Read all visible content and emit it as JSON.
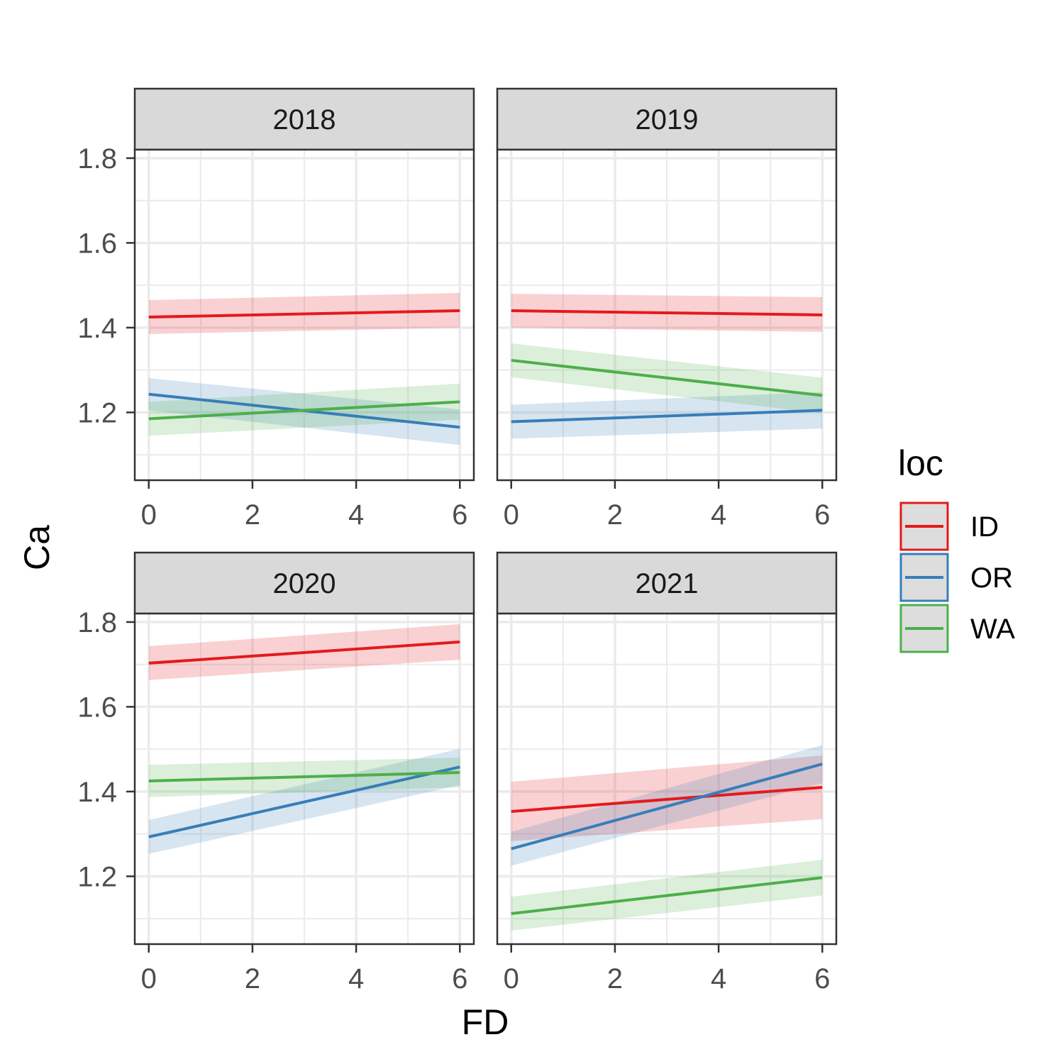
{
  "chart_data": {
    "type": "line",
    "facet_var": "year",
    "panels": [
      "2018",
      "2019",
      "2020",
      "2021"
    ],
    "xlabel": "FD",
    "ylabel": "Ca",
    "xlim": [
      -0.27,
      6.27
    ],
    "ylim": [
      1.04,
      1.82
    ],
    "xticks": [
      0,
      2,
      4,
      6
    ],
    "yticks": [
      1.2,
      1.4,
      1.6,
      1.8
    ],
    "xtick_labels": [
      "0",
      "2",
      "4",
      "6"
    ],
    "ytick_labels": [
      "1.2",
      "1.4",
      "1.6",
      "1.8"
    ],
    "grid": true,
    "legend": {
      "title": "loc",
      "position": "right",
      "entries": [
        {
          "name": "ID",
          "color": "#e41a1c"
        },
        {
          "name": "OR",
          "color": "#377eb8"
        },
        {
          "name": "WA",
          "color": "#4daf4a"
        }
      ]
    },
    "series": [
      {
        "panel": "2018",
        "name": "ID",
        "x": [
          0,
          6
        ],
        "y": [
          1.425,
          1.44
        ],
        "lower": [
          1.385,
          1.4
        ],
        "upper": [
          1.465,
          1.482
        ]
      },
      {
        "panel": "2018",
        "name": "OR",
        "x": [
          0,
          6
        ],
        "y": [
          1.243,
          1.165
        ],
        "lower": [
          1.205,
          1.123
        ],
        "upper": [
          1.281,
          1.207
        ]
      },
      {
        "panel": "2018",
        "name": "WA",
        "x": [
          0,
          6
        ],
        "y": [
          1.185,
          1.225
        ],
        "lower": [
          1.145,
          1.183
        ],
        "upper": [
          1.225,
          1.268
        ]
      },
      {
        "panel": "2019",
        "name": "ID",
        "x": [
          0,
          6
        ],
        "y": [
          1.44,
          1.43
        ],
        "lower": [
          1.4,
          1.39
        ],
        "upper": [
          1.48,
          1.472
        ]
      },
      {
        "panel": "2019",
        "name": "OR",
        "x": [
          0,
          6
        ],
        "y": [
          1.178,
          1.205
        ],
        "lower": [
          1.138,
          1.162
        ],
        "upper": [
          1.218,
          1.248
        ]
      },
      {
        "panel": "2019",
        "name": "WA",
        "x": [
          0,
          6
        ],
        "y": [
          1.323,
          1.24
        ],
        "lower": [
          1.283,
          1.198
        ],
        "upper": [
          1.363,
          1.282
        ]
      },
      {
        "panel": "2020",
        "name": "ID",
        "x": [
          0,
          6
        ],
        "y": [
          1.703,
          1.753
        ],
        "lower": [
          1.663,
          1.711
        ],
        "upper": [
          1.743,
          1.795
        ]
      },
      {
        "panel": "2020",
        "name": "OR",
        "x": [
          0,
          6
        ],
        "y": [
          1.293,
          1.458
        ],
        "lower": [
          1.253,
          1.415
        ],
        "upper": [
          1.333,
          1.501
        ]
      },
      {
        "panel": "2020",
        "name": "WA",
        "x": [
          0,
          6
        ],
        "y": [
          1.425,
          1.445
        ],
        "lower": [
          1.387,
          1.41
        ],
        "upper": [
          1.463,
          1.48
        ]
      },
      {
        "panel": "2021",
        "name": "ID",
        "x": [
          0,
          6
        ],
        "y": [
          1.353,
          1.41
        ],
        "lower": [
          1.283,
          1.335
        ],
        "upper": [
          1.423,
          1.485
        ]
      },
      {
        "panel": "2021",
        "name": "OR",
        "x": [
          0,
          6
        ],
        "y": [
          1.265,
          1.465
        ],
        "lower": [
          1.225,
          1.42
        ],
        "upper": [
          1.305,
          1.51
        ]
      },
      {
        "panel": "2021",
        "name": "WA",
        "x": [
          0,
          6
        ],
        "y": [
          1.112,
          1.197
        ],
        "lower": [
          1.072,
          1.155
        ],
        "upper": [
          1.152,
          1.239
        ]
      }
    ]
  }
}
